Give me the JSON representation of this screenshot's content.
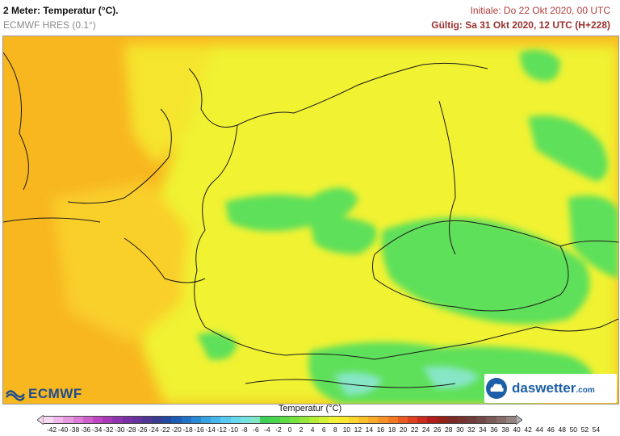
{
  "header": {
    "title": "2 Meter: Temperatur (°C).",
    "model": "ECMWF HRES (0.1°)",
    "initial": "Initiale: Do 22 Okt 2020, 00 UTC",
    "valid": "Gültig: Sa 31 Okt 2020, 12 UTC (H+228)"
  },
  "logos": {
    "ecmwf": "ECMWF",
    "daswetter": "daswetter",
    "daswetter_tld": ".com"
  },
  "legend": {
    "title": "Temperatur (°C)",
    "ticks": [
      "-42",
      "-40",
      "-38",
      "-36",
      "-34",
      "-32",
      "-30",
      "-28",
      "-26",
      "-24",
      "-22",
      "-20",
      "-18",
      "-16",
      "-14",
      "-12",
      "-10",
      "-8",
      "-6",
      "-4",
      "-2",
      "0",
      "2",
      "4",
      "6",
      "8",
      "10",
      "12",
      "14",
      "16",
      "18",
      "20",
      "22",
      "24",
      "26",
      "28",
      "30",
      "32",
      "34",
      "36",
      "38",
      "40",
      "42",
      "44",
      "46",
      "48",
      "50",
      "52",
      "54"
    ],
    "colors": [
      "#f7d8f2",
      "#f0b8ea",
      "#e79ae0",
      "#dc7cd6",
      "#cf5fcb",
      "#bf46c2",
      "#a938b8",
      "#9033ae",
      "#7a30a5",
      "#66329d",
      "#503694",
      "#3a3c8f",
      "#2448a0",
      "#1c5cb5",
      "#1f73c7",
      "#2a89d6",
      "#36a1e3",
      "#46b7ec",
      "#56caf0",
      "#66d8ee",
      "#74e2e0",
      "#80e6c4",
      "#3fce57",
      "#49d64f",
      "#5cdd47",
      "#76e33f",
      "#93e83a",
      "#b2ee36",
      "#d2f235",
      "#f0f233",
      "#fbe82f",
      "#fbd52c",
      "#fac02a",
      "#f8a928",
      "#f69125",
      "#f27723",
      "#ea5a21",
      "#de3f1e",
      "#cc2a1c",
      "#b21c1a",
      "#942219",
      "#7d2a26",
      "#75322f",
      "#6f3c3a",
      "#714a47",
      "#7a5a57",
      "#866d6a",
      "#948380"
    ],
    "colors_note": ""
  },
  "map": {
    "region": "",
    "dominant_colors": {
      "cool_green": "#5ee05a",
      "mild_yellow": "#f3f531",
      "warm_orange": "#f8b21f"
    }
  }
}
